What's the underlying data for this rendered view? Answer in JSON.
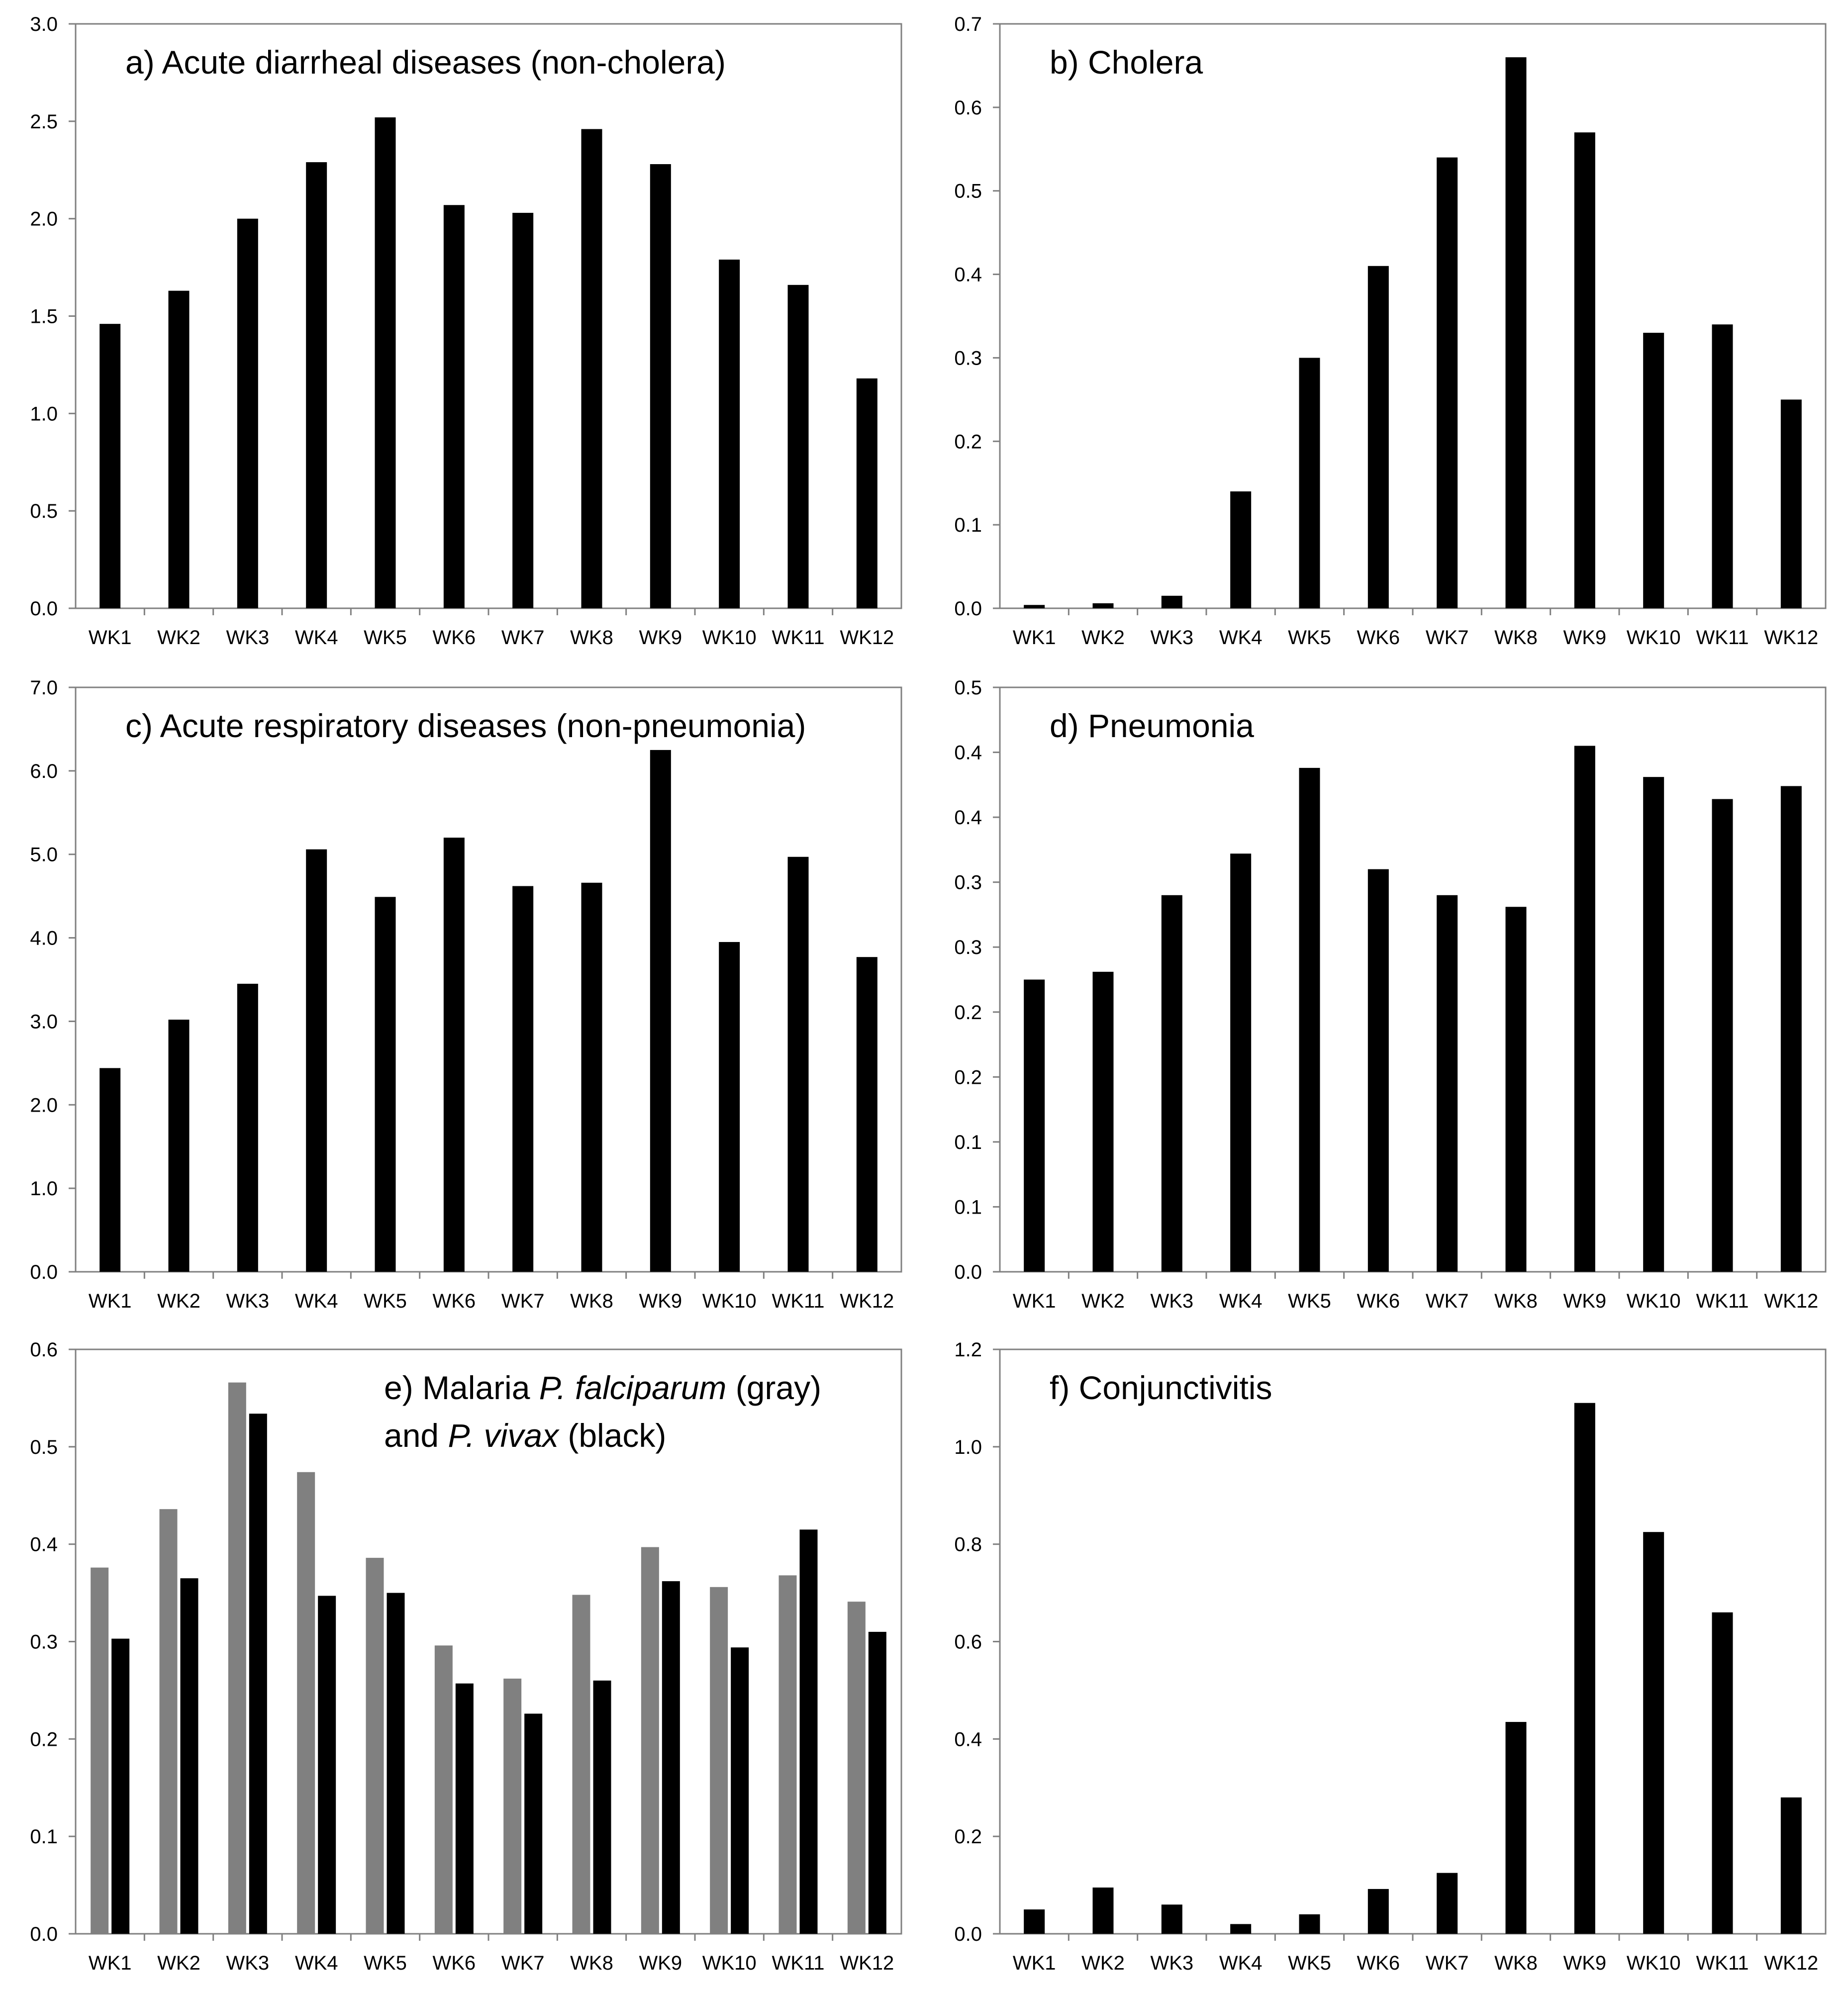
{
  "chart_data": [
    {
      "type": "bar",
      "title": "a) Acute diarrheal diseases (non-cholera)",
      "categories": [
        "WK1",
        "WK2",
        "WK3",
        "WK4",
        "WK5",
        "WK6",
        "WK7",
        "WK8",
        "WK9",
        "WK10",
        "WK11",
        "WK12"
      ],
      "series": [
        {
          "name": "",
          "color": "#000000",
          "values": [
            1.46,
            1.63,
            2.0,
            2.29,
            2.52,
            2.07,
            2.03,
            2.46,
            2.28,
            1.79,
            1.66,
            1.18
          ]
        }
      ],
      "yticks": [
        "0.0",
        "0.5",
        "1.0",
        "1.5",
        "2.0",
        "2.5",
        "3.0"
      ],
      "ylim": [
        0,
        3.0
      ],
      "xlabel": "",
      "ylabel": "",
      "legend": "none"
    },
    {
      "type": "bar",
      "title": "b) Cholera",
      "categories": [
        "WK1",
        "WK2",
        "WK3",
        "WK4",
        "WK5",
        "WK6",
        "WK7",
        "WK8",
        "WK9",
        "WK10",
        "WK11",
        "WK12"
      ],
      "series": [
        {
          "name": "",
          "color": "#000000",
          "values": [
            0.004,
            0.006,
            0.015,
            0.14,
            0.3,
            0.41,
            0.54,
            0.66,
            0.57,
            0.33,
            0.34,
            0.25
          ]
        }
      ],
      "yticks": [
        "0.0",
        "0.1",
        "0.2",
        "0.3",
        "0.4",
        "0.5",
        "0.6",
        "0.7"
      ],
      "ylim": [
        0,
        0.7
      ],
      "xlabel": "",
      "ylabel": "",
      "legend": "none"
    },
    {
      "type": "bar",
      "title": "c) Acute respiratory diseases (non-pneumonia)",
      "categories": [
        "WK1",
        "WK2",
        "WK3",
        "WK4",
        "WK5",
        "WK6",
        "WK7",
        "WK8",
        "WK9",
        "WK10",
        "WK11",
        "WK12"
      ],
      "series": [
        {
          "name": "",
          "color": "#000000",
          "values": [
            2.44,
            3.02,
            3.45,
            5.06,
            4.49,
            5.2,
            4.62,
            4.66,
            6.25,
            3.95,
            4.97,
            3.77
          ]
        }
      ],
      "yticks": [
        "0.0",
        "1.0",
        "2.0",
        "3.0",
        "4.0",
        "5.0",
        "6.0",
        "7.0"
      ],
      "ylim": [
        0,
        7.0
      ],
      "xlabel": "",
      "ylabel": "",
      "legend": "none"
    },
    {
      "type": "bar",
      "title": "d) Pneumonia",
      "categories": [
        "WK1",
        "WK2",
        "WK3",
        "WK4",
        "WK5",
        "WK6",
        "WK7",
        "WK8",
        "WK9",
        "WK10",
        "WK11",
        "WK12"
      ],
      "series": [
        {
          "name": "",
          "color": "#000000",
          "values": [
            0.225,
            0.231,
            0.29,
            0.322,
            0.388,
            0.31,
            0.29,
            0.281,
            0.405,
            0.381,
            0.364,
            0.374
          ]
        }
      ],
      "yticks": [
        "0.0",
        "0.1",
        "0.1",
        "0.2",
        "0.2",
        "0.3",
        "0.3",
        "0.4",
        "0.4",
        "0.5"
      ],
      "ylim": [
        0,
        0.45
      ],
      "xlabel": "",
      "ylabel": "",
      "legend": "none"
    },
    {
      "type": "bar",
      "title": "e) Malaria P. falciparum (gray) and P. vivax (black)",
      "title_parts": {
        "line1": [
          "e) Malaria ",
          "P. falciparum",
          " (gray)"
        ],
        "line2": [
          "and ",
          "P. vivax",
          " (black)"
        ]
      },
      "categories": [
        "WK1",
        "WK2",
        "WK3",
        "WK4",
        "WK5",
        "WK6",
        "WK7",
        "WK8",
        "WK9",
        "WK10",
        "WK11",
        "WK12"
      ],
      "series": [
        {
          "name": "P. falciparum (gray)",
          "color": "#808080",
          "values": [
            0.376,
            0.436,
            0.566,
            0.474,
            0.386,
            0.296,
            0.262,
            0.348,
            0.397,
            0.356,
            0.368,
            0.341
          ]
        },
        {
          "name": "P. vivax (black)",
          "color": "#000000",
          "values": [
            0.303,
            0.365,
            0.534,
            0.347,
            0.35,
            0.257,
            0.226,
            0.26,
            0.362,
            0.294,
            0.415,
            0.31
          ]
        }
      ],
      "yticks": [
        "0.0",
        "0.1",
        "0.2",
        "0.3",
        "0.4",
        "0.5",
        "0.6"
      ],
      "ylim": [
        0,
        0.6
      ],
      "xlabel": "",
      "ylabel": "",
      "legend": "in title"
    },
    {
      "type": "bar",
      "title": "f) Conjunctivitis",
      "categories": [
        "WK1",
        "WK2",
        "WK3",
        "WK4",
        "WK5",
        "WK6",
        "WK7",
        "WK8",
        "WK9",
        "WK10",
        "WK11",
        "WK12"
      ],
      "series": [
        {
          "name": "",
          "color": "#000000",
          "values": [
            0.05,
            0.095,
            0.06,
            0.02,
            0.04,
            0.092,
            0.125,
            0.435,
            1.09,
            0.825,
            0.66,
            0.28
          ]
        }
      ],
      "yticks": [
        "0.0",
        "0.2",
        "0.4",
        "0.6",
        "0.8",
        "1.0",
        "1.2"
      ],
      "ylim": [
        0,
        1.2
      ],
      "xlabel": "",
      "ylabel": "",
      "legend": "none"
    }
  ]
}
